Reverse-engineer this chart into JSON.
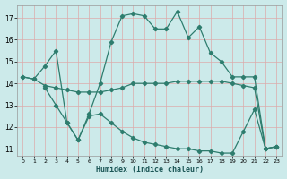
{
  "xlabel": "Humidex (Indice chaleur)",
  "bg_color": "#cceaea",
  "grid_color": "#ddaaaa",
  "line_color": "#2e7d6e",
  "xlim": [
    -0.5,
    23.5
  ],
  "ylim": [
    10.7,
    17.6
  ],
  "xticks": [
    0,
    1,
    2,
    3,
    4,
    5,
    6,
    7,
    8,
    9,
    10,
    11,
    12,
    13,
    14,
    15,
    16,
    17,
    18,
    19,
    20,
    21,
    22,
    23
  ],
  "yticks": [
    11,
    12,
    13,
    14,
    15,
    16,
    17
  ],
  "series1_x": [
    0,
    1,
    2,
    3,
    4,
    5,
    6,
    7,
    8,
    9,
    10,
    11,
    12,
    13,
    14,
    15,
    16,
    17,
    18,
    19,
    20,
    21,
    22,
    23
  ],
  "series1_y": [
    14.3,
    14.2,
    14.8,
    15.5,
    12.2,
    11.4,
    12.6,
    14.0,
    15.9,
    17.1,
    17.2,
    17.1,
    16.5,
    16.5,
    17.3,
    16.1,
    16.6,
    15.4,
    15.0,
    14.3,
    14.3,
    14.3,
    11.0,
    11.1
  ],
  "series2_x": [
    0,
    1,
    2,
    3,
    4,
    5,
    6,
    7,
    8,
    9,
    10,
    11,
    12,
    13,
    14,
    15,
    16,
    17,
    18,
    19,
    20,
    21,
    22,
    23
  ],
  "series2_y": [
    14.3,
    14.2,
    13.9,
    13.8,
    13.7,
    13.6,
    13.6,
    13.6,
    13.7,
    13.8,
    14.0,
    14.0,
    14.0,
    14.0,
    14.1,
    14.1,
    14.1,
    14.1,
    14.1,
    14.0,
    13.9,
    13.8,
    11.0,
    11.1
  ],
  "series3_x": [
    2,
    3,
    4,
    5,
    6,
    7,
    8,
    9,
    10,
    11,
    12,
    13,
    14,
    15,
    16,
    17,
    18,
    19,
    20,
    21,
    22,
    23
  ],
  "series3_y": [
    13.8,
    13.0,
    12.2,
    11.4,
    12.5,
    12.6,
    12.2,
    11.8,
    11.5,
    11.3,
    11.2,
    11.1,
    11.0,
    11.0,
    10.9,
    10.9,
    10.8,
    10.8,
    11.8,
    12.8,
    11.0,
    11.1
  ]
}
